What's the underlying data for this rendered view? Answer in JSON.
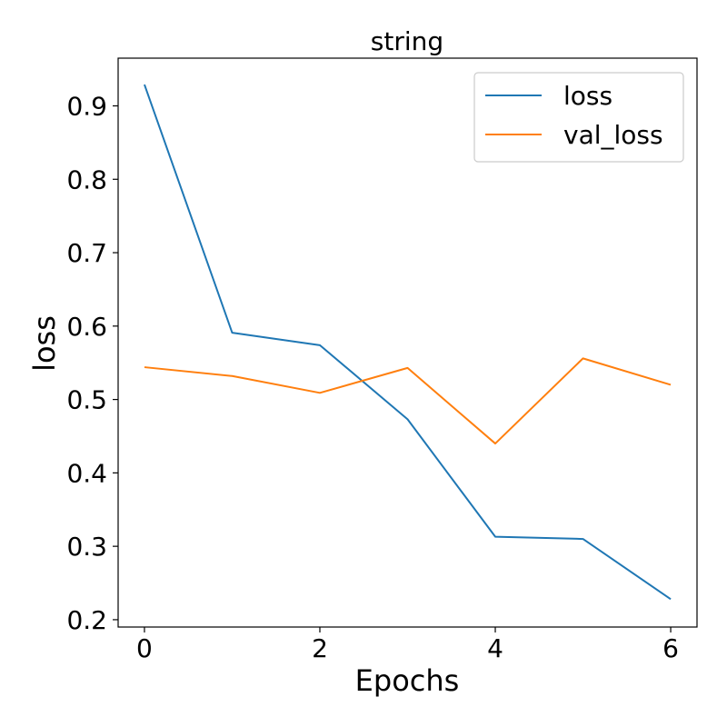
{
  "chart_data": {
    "type": "line",
    "title": "string",
    "xlabel": "Epochs",
    "ylabel": "loss",
    "x": [
      0,
      1,
      2,
      3,
      4,
      5,
      6
    ],
    "xlim": [
      -0.3,
      6.3
    ],
    "ylim": [
      0.19,
      0.965
    ],
    "xticks": [
      0,
      2,
      4,
      6
    ],
    "yticks": [
      0.2,
      0.3,
      0.4,
      0.5,
      0.6,
      0.7,
      0.8,
      0.9
    ],
    "grid": false,
    "legend_position": "top-right",
    "series": [
      {
        "name": "loss",
        "color": "#1f77b4",
        "values": [
          0.929,
          0.591,
          0.574,
          0.473,
          0.313,
          0.31,
          0.228
        ]
      },
      {
        "name": "val_loss",
        "color": "#ff7f0e",
        "values": [
          0.544,
          0.532,
          0.509,
          0.543,
          0.44,
          0.556,
          0.52
        ]
      }
    ]
  }
}
